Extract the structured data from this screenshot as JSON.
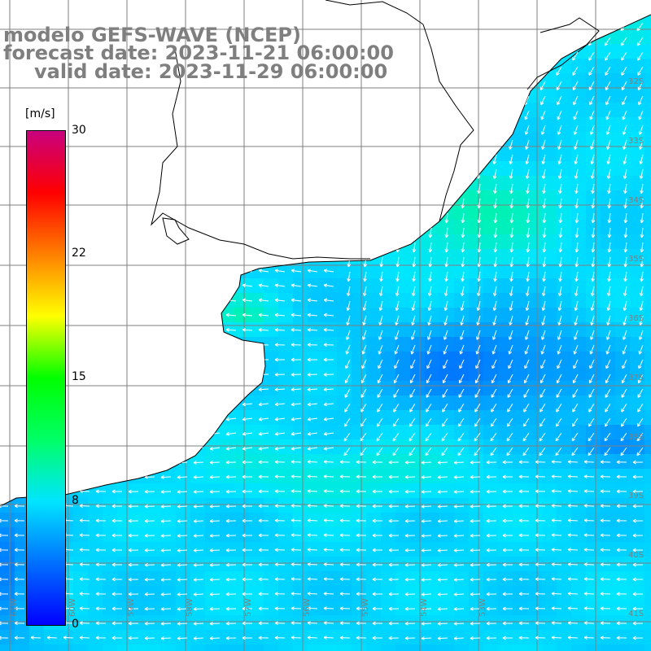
{
  "title": {
    "model": "modelo GEFS-WAVE (NCEP)",
    "forecast": "forecast date: 2023-11-21 06:00:00",
    "valid": "valid date: 2023-11-29 06:00:00"
  },
  "colorbar": {
    "unit": "[m/s]",
    "ticks": [
      "30",
      "22",
      "15",
      "8",
      "0"
    ],
    "tick_values": [
      30,
      22,
      15,
      8,
      0
    ],
    "range": [
      0,
      30
    ],
    "colors": [
      "#0000ff",
      "#0070ff",
      "#00e5ff",
      "#00ff66",
      "#00ff00",
      "#ffff00",
      "#ff8000",
      "#ff0000",
      "#c8007f"
    ]
  },
  "map": {
    "lat_labels": [
      "32S",
      "33S",
      "34S",
      "35S",
      "36S",
      "37S",
      "38S",
      "39S",
      "40S",
      "41S"
    ],
    "lon_labels": [
      "61W",
      "60W",
      "59W",
      "58W",
      "57W",
      "56W",
      "55W",
      "54W",
      "53W"
    ],
    "land_color": "#ffffff",
    "grid_color": "#7f7f7f"
  }
}
